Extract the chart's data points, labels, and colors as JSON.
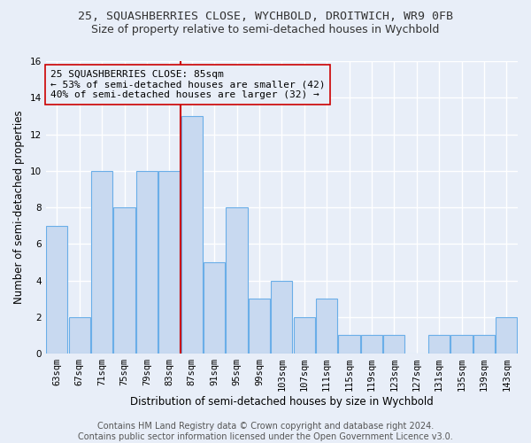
{
  "title": "25, SQUASHBERRIES CLOSE, WYCHBOLD, DROITWICH, WR9 0FB",
  "subtitle": "Size of property relative to semi-detached houses in Wychbold",
  "xlabel": "Distribution of semi-detached houses by size in Wychbold",
  "ylabel": "Number of semi-detached properties",
  "categories": [
    "63sqm",
    "67sqm",
    "71sqm",
    "75sqm",
    "79sqm",
    "83sqm",
    "87sqm",
    "91sqm",
    "95sqm",
    "99sqm",
    "103sqm",
    "107sqm",
    "111sqm",
    "115sqm",
    "119sqm",
    "123sqm",
    "127sqm",
    "131sqm",
    "135sqm",
    "139sqm",
    "143sqm"
  ],
  "values": [
    7,
    2,
    10,
    8,
    10,
    10,
    13,
    5,
    8,
    3,
    4,
    2,
    3,
    1,
    1,
    1,
    0,
    1,
    1,
    1,
    2
  ],
  "bar_color": "#c8d9f0",
  "bar_edge_color": "#6aaee8",
  "subject_label": "25 SQUASHBERRIES CLOSE: 85sqm",
  "pct_smaller": 53,
  "n_smaller": 42,
  "pct_larger": 40,
  "n_larger": 32,
  "vline_color": "#cc0000",
  "annotation_box_edge": "#cc0000",
  "ylim": [
    0,
    16
  ],
  "yticks": [
    0,
    2,
    4,
    6,
    8,
    10,
    12,
    14,
    16
  ],
  "footer": "Contains HM Land Registry data © Crown copyright and database right 2024.\nContains public sector information licensed under the Open Government Licence v3.0.",
  "background_color": "#e8eef8",
  "grid_color": "#ffffff",
  "title_fontsize": 9.5,
  "subtitle_fontsize": 9,
  "axis_label_fontsize": 8.5,
  "tick_fontsize": 7.5,
  "annotation_fontsize": 8,
  "footer_fontsize": 7
}
